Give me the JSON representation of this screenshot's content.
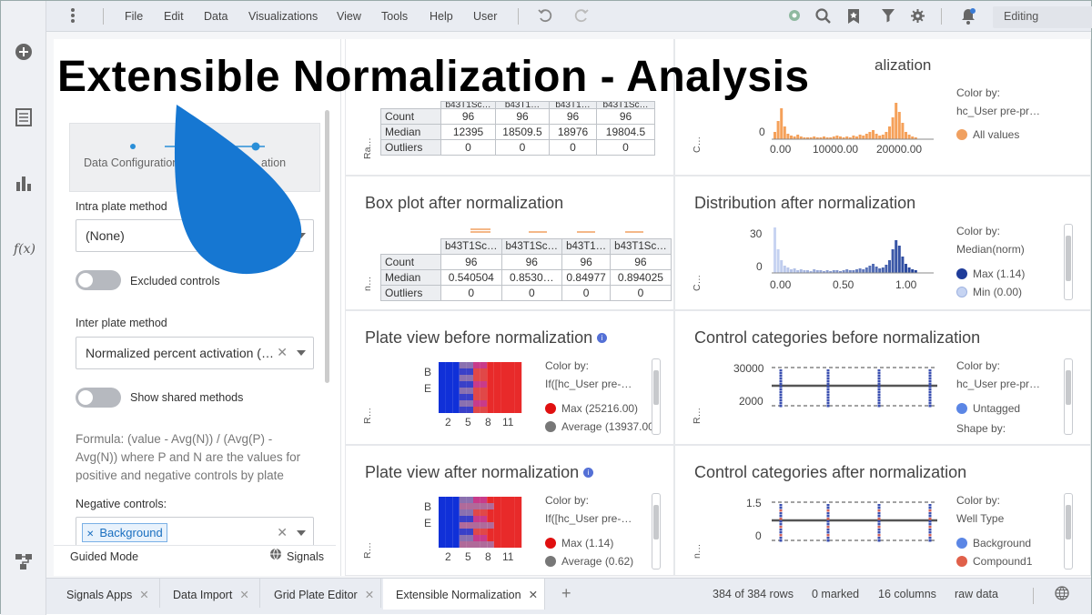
{
  "menu": {
    "items": [
      "File",
      "Edit",
      "Data",
      "Visualizations",
      "View",
      "Tools",
      "Help",
      "User"
    ]
  },
  "toolbar": {
    "mode": "Editing"
  },
  "overlay": {
    "title": "Extensible Normalization - Analysis"
  },
  "left_panel": {
    "wizard_steps": [
      "Data Configuration",
      "ation"
    ],
    "intra_label": "Intra plate method",
    "intra_value": "(None)",
    "excluded_controls": "Excluded controls",
    "inter_label": "Inter plate method",
    "inter_value": "Normalized percent activation (…",
    "show_shared": "Show shared methods",
    "formula": "Formula: (value - Avg(N)) / (Avg(P) - Avg(N)) where P and N are the values for positive and negative controls by plate",
    "negative_label": "Negative controls:",
    "negative_chip": "Background",
    "guided_mode": "Guided Mode",
    "signals": "Signals"
  },
  "cards": {
    "top_right_title_fragment": "alization",
    "box_before": {
      "vlabel": "Ra…",
      "headers": [
        "b43T1Sc…",
        "b43T1…",
        "b43T1…",
        "b43T1Sc…"
      ],
      "rows": [
        {
          "label": "Count",
          "values": [
            "96",
            "96",
            "96",
            "96"
          ]
        },
        {
          "label": "Median",
          "values": [
            "12395",
            "18509.5",
            "18976",
            "19804.5"
          ]
        },
        {
          "label": "Outliers",
          "values": [
            "0",
            "0",
            "0",
            "0"
          ]
        }
      ]
    },
    "dist_before": {
      "vlabel": "C…",
      "y0": "0",
      "xticks": [
        "0.00",
        "10000.00",
        "20000.00"
      ],
      "color_by": "Color by:",
      "color_field": "hc_User pre-pr…",
      "legend": [
        {
          "label": "All values",
          "color": "#f0a060"
        }
      ]
    },
    "box_after": {
      "title": "Box plot after normalization",
      "vlabel": "n…",
      "headers": [
        "b43T1Sc…",
        "b43T1Sc…",
        "b43T1…",
        "b43T1Sc…"
      ],
      "rows": [
        {
          "label": "Count",
          "values": [
            "96",
            "96",
            "96",
            "96"
          ]
        },
        {
          "label": "Median",
          "values": [
            "0.540504",
            "0.8530…",
            "0.84977",
            "0.894025"
          ]
        },
        {
          "label": "Outliers",
          "values": [
            "0",
            "0",
            "0",
            "0"
          ]
        }
      ]
    },
    "dist_after": {
      "title": "Distribution after normalization",
      "vlabel": "C…",
      "yticks": [
        "30",
        "0"
      ],
      "xticks": [
        "0.00",
        "0.50",
        "1.00"
      ],
      "color_by": "Color by:",
      "color_field": "Median(norm)",
      "legend": [
        {
          "label": "Max (1.14)",
          "color": "#1f3c99"
        },
        {
          "label": "Min (0.00)",
          "color": "#c6d4f2"
        }
      ]
    },
    "plate_before": {
      "title": "Plate view before normalization",
      "vlabel": "R…",
      "rows": [
        "B",
        "E"
      ],
      "xticks": [
        "2",
        "5",
        "8",
        "11"
      ],
      "color_by": "Color by:",
      "color_field": "If([hc_User pre-…",
      "legend": [
        {
          "label": "Max (25216.00)",
          "color": "#e01010"
        },
        {
          "label": "Average (13937.00)",
          "color": "#777777"
        }
      ]
    },
    "ctrl_before": {
      "title": "Control categories before normalization",
      "vlabel": "R…",
      "yticks": [
        "30000",
        "2000"
      ],
      "color_by": "Color by:",
      "color_field": "hc_User pre-pr…",
      "legend": [
        {
          "label": "Untagged",
          "color": "#5b86e5"
        }
      ],
      "shape_by": "Shape by:"
    },
    "plate_after": {
      "title": "Plate view after normalization",
      "vlabel": "R…",
      "rows": [
        "B",
        "E"
      ],
      "xticks": [
        "2",
        "5",
        "8",
        "11"
      ],
      "color_by": "Color by:",
      "color_field": "If([hc_User pre-…",
      "legend": [
        {
          "label": "Max (1.14)",
          "color": "#e01010"
        },
        {
          "label": "Average (0.62)",
          "color": "#777777"
        }
      ]
    },
    "ctrl_after": {
      "title": "Control categories after normalization",
      "vlabel": "n…",
      "yticks": [
        "1.5",
        "0"
      ],
      "color_by": "Color by:",
      "color_field": "Well Type",
      "legend": [
        {
          "label": "Background",
          "color": "#5b86e5"
        },
        {
          "label": "Compound1",
          "color": "#e0604a"
        }
      ]
    }
  },
  "bottom": {
    "tabs": [
      "Signals Apps",
      "Data Import",
      "Grid Plate Editor",
      "Extensible Normalization"
    ],
    "rows": "384 of 384 rows",
    "marked": "0 marked",
    "columns": "16 columns",
    "raw": "raw data"
  }
}
